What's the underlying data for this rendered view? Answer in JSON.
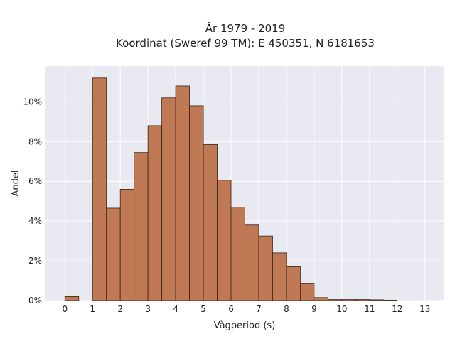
{
  "chart_data": {
    "type": "bar",
    "title_lines": [
      "År 1979 - 2019",
      "Koordinat (Sweref 99 TM): E 450351, N 6181653"
    ],
    "xlabel": "Vågperiod (s)",
    "ylabel": "Andel",
    "xlim": [
      -0.7,
      13.7
    ],
    "ylim": [
      0,
      11.8
    ],
    "x_ticks": [
      "0",
      "1",
      "2",
      "3",
      "4",
      "5",
      "6",
      "7",
      "8",
      "9",
      "10",
      "11",
      "12",
      "13"
    ],
    "y_ticks": [
      "0%",
      "2%",
      "4%",
      "6%",
      "8%",
      "10%"
    ],
    "bin_width": 0.5,
    "bins": [
      {
        "start": 0.0,
        "value": 0.2
      },
      {
        "start": 1.0,
        "value": 11.2
      },
      {
        "start": 1.5,
        "value": 4.65
      },
      {
        "start": 2.0,
        "value": 5.6
      },
      {
        "start": 2.5,
        "value": 7.45
      },
      {
        "start": 3.0,
        "value": 8.8
      },
      {
        "start": 3.5,
        "value": 10.2
      },
      {
        "start": 4.0,
        "value": 10.8
      },
      {
        "start": 4.5,
        "value": 9.8
      },
      {
        "start": 5.0,
        "value": 7.85
      },
      {
        "start": 5.5,
        "value": 6.05
      },
      {
        "start": 6.0,
        "value": 4.7
      },
      {
        "start": 6.5,
        "value": 3.8
      },
      {
        "start": 7.0,
        "value": 3.25
      },
      {
        "start": 7.5,
        "value": 2.4
      },
      {
        "start": 8.0,
        "value": 1.7
      },
      {
        "start": 8.5,
        "value": 0.85
      },
      {
        "start": 9.0,
        "value": 0.15
      },
      {
        "start": 9.5,
        "value": 0.05
      },
      {
        "start": 10.0,
        "value": 0.05
      },
      {
        "start": 10.5,
        "value": 0.05
      },
      {
        "start": 11.0,
        "value": 0.04
      },
      {
        "start": 11.5,
        "value": 0.02
      }
    ],
    "grid": true,
    "colors": {
      "bar_fill": "#bf7a55",
      "bar_stroke": "#3a2418",
      "plot_bg": "#e9e9f1",
      "grid": "#ffffff"
    }
  }
}
